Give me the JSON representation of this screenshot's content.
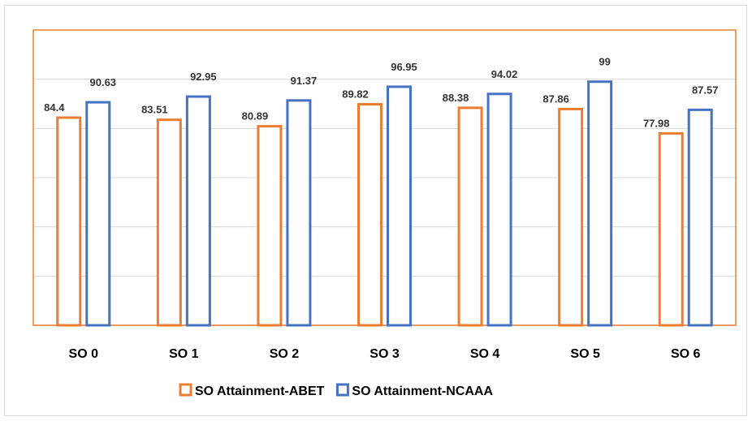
{
  "chart_data": {
    "type": "bar",
    "categories": [
      "SO 0",
      "SO 1",
      "SO 2",
      "SO 3",
      "SO 4",
      "SO 5",
      "SO 6"
    ],
    "series": [
      {
        "name": "SO Attainment-ABET",
        "values": [
          84.4,
          83.51,
          80.89,
          89.82,
          88.38,
          87.86,
          77.98
        ],
        "color": "#ed7d31"
      },
      {
        "name": "SO Attainment-NCAAA",
        "values": [
          90.63,
          92.95,
          91.37,
          96.95,
          94.02,
          99,
          87.57
        ],
        "color": "#4472c4"
      }
    ],
    "ylim": [
      0,
      120
    ],
    "grid": true,
    "legend_position": "bottom",
    "plot_border_color": "#ed7d31",
    "gridline_color": "#d9d9d9"
  }
}
